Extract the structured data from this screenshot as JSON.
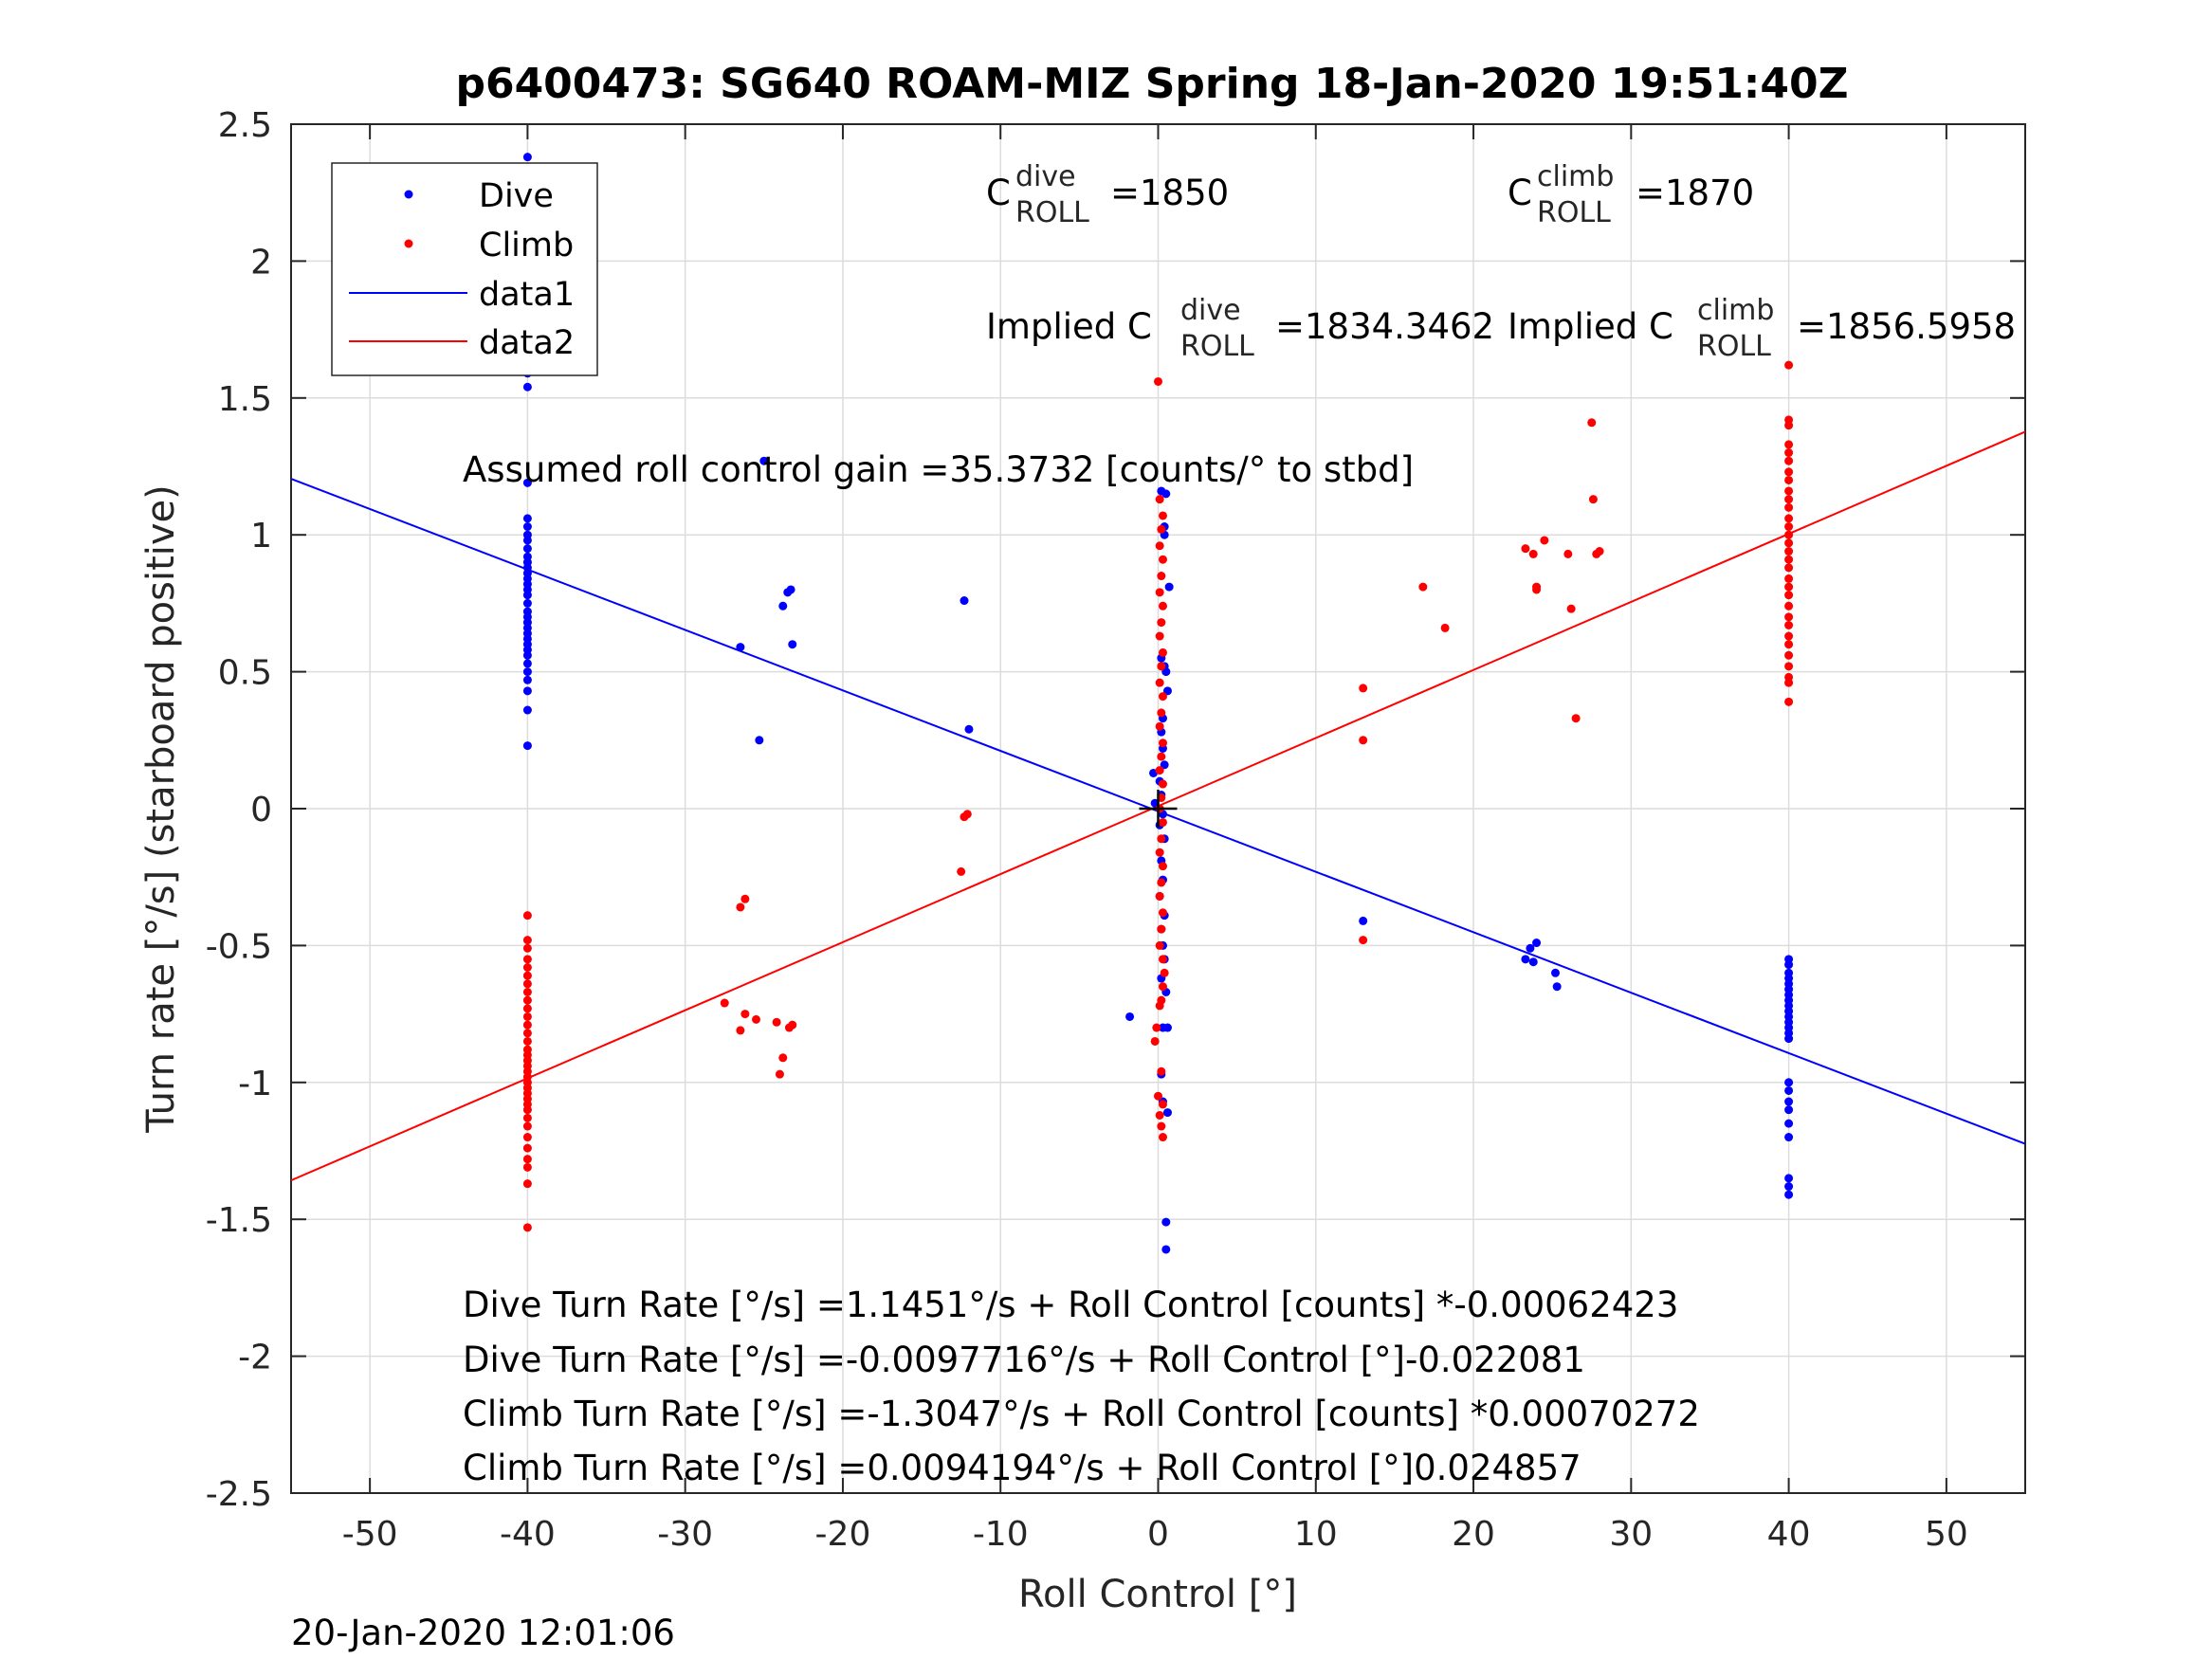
{
  "title": "p6400473: SG640 ROAM-MIZ Spring 18-Jan-2020 19:51:40Z",
  "footer_timestamp": "20-Jan-2020 12:01:06",
  "colors": {
    "dive": "#0000ff",
    "climb": "#ff0000",
    "grid": "#dcdcdc",
    "axis": "#262626"
  },
  "chart_data": {
    "type": "scatter",
    "xlabel": "Roll Control [°]",
    "ylabel": "Turn rate [°/s] (starboard positive)",
    "xlim": [
      -55,
      55
    ],
    "ylim": [
      -2.5,
      2.5
    ],
    "grid": true,
    "legend_position": "top-left",
    "xticks": [
      "-50",
      "-40",
      "-30",
      "-20",
      "-10",
      "0",
      "10",
      "20",
      "30",
      "40",
      "50"
    ],
    "yticks": [
      "2.5",
      "2",
      "1.5",
      "1",
      "0.5",
      "0",
      "-0.5",
      "-1",
      "-1.5",
      "-2",
      "-2.5"
    ],
    "legend": [
      "Dive",
      "Climb",
      "data1",
      "data2"
    ],
    "fit_lines": [
      {
        "name": "data1",
        "intercept": -0.0097716,
        "slope": -0.022081
      },
      {
        "name": "data2",
        "intercept": 0.0094194,
        "slope": 0.024857
      }
    ],
    "series": [
      {
        "name": "Dive",
        "points": [
          [
            -40,
            2.38
          ],
          [
            -40,
            2.11
          ],
          [
            -40,
            1.82
          ],
          [
            -40,
            1.78
          ],
          [
            -40,
            1.73
          ],
          [
            -40,
            1.68
          ],
          [
            -40,
            1.59
          ],
          [
            -40,
            1.54
          ],
          [
            -40,
            1.19
          ],
          [
            -40,
            1.06
          ],
          [
            -40,
            1.03
          ],
          [
            -40,
            1.0
          ],
          [
            -40,
            0.98
          ],
          [
            -40,
            0.95
          ],
          [
            -40,
            0.92
          ],
          [
            -40,
            0.9
          ],
          [
            -40,
            0.88
          ],
          [
            -40,
            0.86
          ],
          [
            -40,
            0.84
          ],
          [
            -40,
            0.82
          ],
          [
            -40,
            0.8
          ],
          [
            -40,
            0.78
          ],
          [
            -40,
            0.75
          ],
          [
            -40,
            0.72
          ],
          [
            -40,
            0.7
          ],
          [
            -40,
            0.68
          ],
          [
            -40,
            0.66
          ],
          [
            -40,
            0.64
          ],
          [
            -40,
            0.62
          ],
          [
            -40,
            0.6
          ],
          [
            -40,
            0.58
          ],
          [
            -40,
            0.56
          ],
          [
            -40,
            0.53
          ],
          [
            -40,
            0.5
          ],
          [
            -40,
            0.47
          ],
          [
            -40,
            0.43
          ],
          [
            -40,
            0.36
          ],
          [
            -40,
            0.23
          ],
          [
            -26.5,
            0.59
          ],
          [
            -25.3,
            0.25
          ],
          [
            -25,
            1.27
          ],
          [
            -23.8,
            0.74
          ],
          [
            -23.5,
            0.79
          ],
          [
            -23.3,
            0.8
          ],
          [
            -23.2,
            0.6
          ],
          [
            -12.3,
            0.76
          ],
          [
            -12,
            0.29
          ],
          [
            -1.8,
            -0.76
          ],
          [
            -0.3,
            0.13
          ],
          [
            -0.2,
            0.02
          ],
          [
            0.2,
            0.55
          ],
          [
            0.4,
            0.52
          ],
          [
            0.5,
            0.5
          ],
          [
            0.6,
            0.43
          ],
          [
            0.3,
            0.33
          ],
          [
            0.2,
            0.28
          ],
          [
            0.3,
            0.22
          ],
          [
            0.4,
            0.16
          ],
          [
            0.1,
            0.1
          ],
          [
            0.2,
            0.05
          ],
          [
            0.3,
            -0.02
          ],
          [
            0.1,
            -0.06
          ],
          [
            0.4,
            -0.11
          ],
          [
            0.2,
            -0.19
          ],
          [
            0.3,
            -0.26
          ],
          [
            0.1,
            -0.32
          ],
          [
            0.4,
            -0.39
          ],
          [
            0.2,
            -0.44
          ],
          [
            0.3,
            -0.5
          ],
          [
            0.4,
            -0.55
          ],
          [
            0.2,
            -0.62
          ],
          [
            0.5,
            -0.67
          ],
          [
            0.3,
            -0.8
          ],
          [
            0.6,
            -0.8
          ],
          [
            0.2,
            -0.97
          ],
          [
            0.3,
            -1.07
          ],
          [
            0.6,
            -1.11
          ],
          [
            0.5,
            -1.51
          ],
          [
            0.5,
            -1.61
          ],
          [
            0.2,
            1.16
          ],
          [
            0.5,
            1.15
          ],
          [
            0.4,
            1.03
          ],
          [
            0.4,
            1.0
          ],
          [
            0.7,
            0.81
          ],
          [
            13,
            -0.41
          ],
          [
            23.3,
            -0.55
          ],
          [
            23.6,
            -0.51
          ],
          [
            23.8,
            -0.56
          ],
          [
            24,
            -0.49
          ],
          [
            25.2,
            -0.6
          ],
          [
            25.3,
            -0.65
          ],
          [
            40,
            -0.55
          ],
          [
            40,
            -0.57
          ],
          [
            40,
            -0.6
          ],
          [
            40,
            -0.62
          ],
          [
            40,
            -0.64
          ],
          [
            40,
            -0.66
          ],
          [
            40,
            -0.68
          ],
          [
            40,
            -0.7
          ],
          [
            40,
            -0.72
          ],
          [
            40,
            -0.74
          ],
          [
            40,
            -0.76
          ],
          [
            40,
            -0.78
          ],
          [
            40,
            -0.8
          ],
          [
            40,
            -0.82
          ],
          [
            40,
            -0.84
          ],
          [
            40,
            -1.0
          ],
          [
            40,
            -1.03
          ],
          [
            40,
            -1.07
          ],
          [
            40,
            -1.1
          ],
          [
            40,
            -1.15
          ],
          [
            40,
            -1.2
          ],
          [
            40,
            -1.35
          ],
          [
            40,
            -1.38
          ],
          [
            40,
            -1.41
          ]
        ]
      },
      {
        "name": "Climb",
        "points": [
          [
            -40,
            -0.39
          ],
          [
            -40,
            -0.48
          ],
          [
            -40,
            -0.51
          ],
          [
            -40,
            -0.55
          ],
          [
            -40,
            -0.58
          ],
          [
            -40,
            -0.61
          ],
          [
            -40,
            -0.64
          ],
          [
            -40,
            -0.67
          ],
          [
            -40,
            -0.7
          ],
          [
            -40,
            -0.73
          ],
          [
            -40,
            -0.76
          ],
          [
            -40,
            -0.79
          ],
          [
            -40,
            -0.82
          ],
          [
            -40,
            -0.85
          ],
          [
            -40,
            -0.88
          ],
          [
            -40,
            -0.9
          ],
          [
            -40,
            -0.92
          ],
          [
            -40,
            -0.94
          ],
          [
            -40,
            -0.96
          ],
          [
            -40,
            -0.98
          ],
          [
            -40,
            -1.0
          ],
          [
            -40,
            -1.02
          ],
          [
            -40,
            -1.04
          ],
          [
            -40,
            -1.06
          ],
          [
            -40,
            -1.08
          ],
          [
            -40,
            -1.1
          ],
          [
            -40,
            -1.13
          ],
          [
            -40,
            -1.16
          ],
          [
            -40,
            -1.2
          ],
          [
            -40,
            -1.24
          ],
          [
            -40,
            -1.28
          ],
          [
            -40,
            -1.31
          ],
          [
            -40,
            -1.37
          ],
          [
            -40,
            -1.53
          ],
          [
            -27.5,
            -0.71
          ],
          [
            -26.5,
            -0.81
          ],
          [
            -26.5,
            -0.36
          ],
          [
            -26.2,
            -0.33
          ],
          [
            -26.2,
            -0.75
          ],
          [
            -25.5,
            -0.77
          ],
          [
            -24.2,
            -0.78
          ],
          [
            -24,
            -0.97
          ],
          [
            -23.8,
            -0.91
          ],
          [
            -23.4,
            -0.8
          ],
          [
            -23.2,
            -0.79
          ],
          [
            -12.5,
            -0.23
          ],
          [
            -12.3,
            -0.03
          ],
          [
            -12.1,
            -0.02
          ],
          [
            -0.2,
            -0.85
          ],
          [
            -0.1,
            -0.8
          ],
          [
            0.1,
            -0.72
          ],
          [
            0.2,
            -0.7
          ],
          [
            0.3,
            -0.65
          ],
          [
            0.4,
            -0.6
          ],
          [
            0.3,
            -0.55
          ],
          [
            0.1,
            -0.5
          ],
          [
            0.2,
            -0.44
          ],
          [
            0.3,
            -0.38
          ],
          [
            0.1,
            -0.32
          ],
          [
            0.2,
            -0.27
          ],
          [
            0.3,
            -0.21
          ],
          [
            0.1,
            -0.16
          ],
          [
            0.2,
            -0.11
          ],
          [
            0.3,
            -0.05
          ],
          [
            0.1,
            0.0
          ],
          [
            0.2,
            0.04
          ],
          [
            0.3,
            0.09
          ],
          [
            0.1,
            0.14
          ],
          [
            0.2,
            0.19
          ],
          [
            0.3,
            0.24
          ],
          [
            0.1,
            0.3
          ],
          [
            0.2,
            0.35
          ],
          [
            0.3,
            0.41
          ],
          [
            0.1,
            0.46
          ],
          [
            0.2,
            0.52
          ],
          [
            0.3,
            0.57
          ],
          [
            0.1,
            0.63
          ],
          [
            0.2,
            0.68
          ],
          [
            0.3,
            0.74
          ],
          [
            0.1,
            0.79
          ],
          [
            0.2,
            0.85
          ],
          [
            0.3,
            0.91
          ],
          [
            0.1,
            0.96
          ],
          [
            0.2,
            1.02
          ],
          [
            0.3,
            1.07
          ],
          [
            0.1,
            1.13
          ],
          [
            0.0,
            1.56
          ],
          [
            0.2,
            -0.96
          ],
          [
            0.0,
            -1.05
          ],
          [
            0.3,
            -1.08
          ],
          [
            0.1,
            -1.12
          ],
          [
            0.2,
            -1.16
          ],
          [
            0.3,
            -1.2
          ],
          [
            13,
            0.44
          ],
          [
            13,
            0.25
          ],
          [
            13,
            -0.48
          ],
          [
            16.8,
            0.81
          ],
          [
            18.2,
            0.66
          ],
          [
            23.3,
            0.95
          ],
          [
            23.8,
            0.93
          ],
          [
            24,
            0.81
          ],
          [
            24,
            0.8
          ],
          [
            24.5,
            0.98
          ],
          [
            26,
            0.93
          ],
          [
            26.2,
            0.73
          ],
          [
            26.5,
            0.33
          ],
          [
            27.5,
            1.41
          ],
          [
            27.6,
            1.13
          ],
          [
            27.8,
            0.93
          ],
          [
            28,
            0.94
          ],
          [
            40,
            1.62
          ],
          [
            40,
            1.42
          ],
          [
            40,
            1.4
          ],
          [
            40,
            1.33
          ],
          [
            40,
            1.3
          ],
          [
            40,
            1.27
          ],
          [
            40,
            1.23
          ],
          [
            40,
            1.2
          ],
          [
            40,
            1.16
          ],
          [
            40,
            1.13
          ],
          [
            40,
            1.1
          ],
          [
            40,
            1.06
          ],
          [
            40,
            1.03
          ],
          [
            40,
            1.0
          ],
          [
            40,
            0.97
          ],
          [
            40,
            0.94
          ],
          [
            40,
            0.91
          ],
          [
            40,
            0.88
          ],
          [
            40,
            0.84
          ],
          [
            40,
            0.81
          ],
          [
            40,
            0.78
          ],
          [
            40,
            0.74
          ],
          [
            40,
            0.7
          ],
          [
            40,
            0.67
          ],
          [
            40,
            0.63
          ],
          [
            40,
            0.6
          ],
          [
            40,
            0.56
          ],
          [
            40,
            0.52
          ],
          [
            40,
            0.48
          ],
          [
            40,
            0.46
          ],
          [
            40,
            0.39
          ]
        ]
      }
    ],
    "annotations": {
      "c_roll_dive": {
        "base": "C",
        "sup": "dive",
        "sub": "ROLL",
        "value": "=1850"
      },
      "c_roll_climb": {
        "base": "C",
        "sup": "climb",
        "sub": "ROLL",
        "value": "=1870"
      },
      "implied_dive": {
        "prefix": "Implied C",
        "sup": "dive",
        "sub": "ROLL",
        "value": "=1834.3462"
      },
      "implied_climb": {
        "prefix": "Implied C",
        "sup": "climb",
        "sub": "ROLL",
        "value": "=1856.5958"
      },
      "gain": "Assumed roll control gain =35.3732 [counts/° to stbd]",
      "equations": [
        "Dive Turn Rate [°/s] =1.1451°/s + Roll Control [counts] *-0.00062423",
        "Dive Turn Rate [°/s] =-0.0097716°/s + Roll Control [°]-0.022081",
        "Climb Turn Rate [°/s] =-1.3047°/s + Roll Control [counts] *0.00070272",
        "Climb Turn Rate [°/s] =0.0094194°/s + Roll Control [°]0.024857"
      ]
    }
  }
}
